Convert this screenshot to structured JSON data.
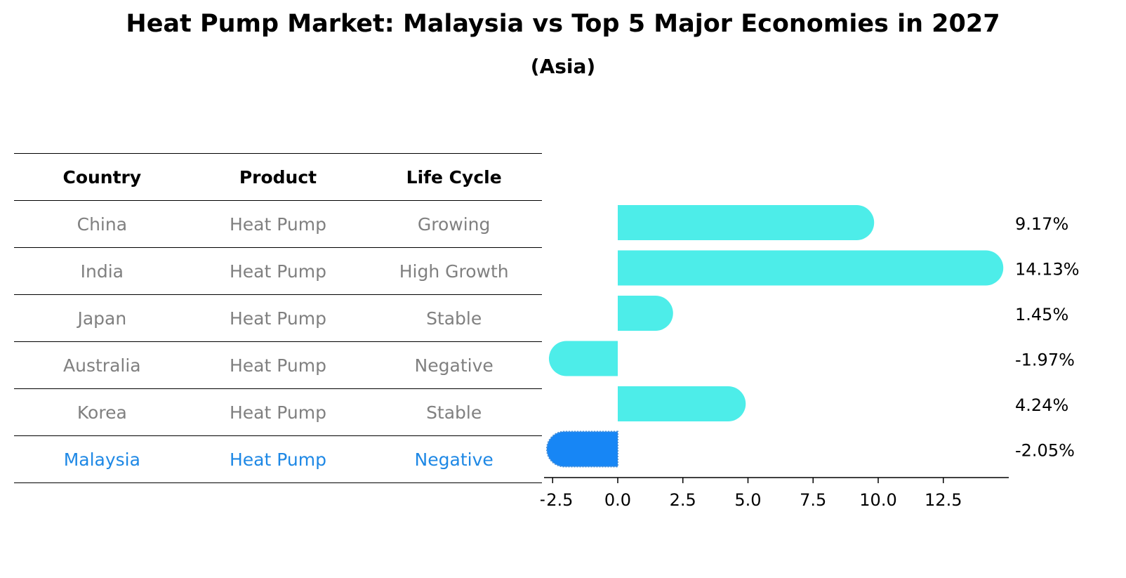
{
  "title": "Heat Pump Market: Malaysia vs Top 5 Major Economies in 2027",
  "subtitle": "(Asia)",
  "table": {
    "headers": [
      "Country",
      "Product",
      "Life Cycle"
    ],
    "rows": [
      [
        "China",
        "Heat Pump",
        "Growing"
      ],
      [
        "India",
        "Heat Pump",
        "High Growth"
      ],
      [
        "Japan",
        "Heat Pump",
        "Stable"
      ],
      [
        "Australia",
        "Heat Pump",
        "Negative"
      ],
      [
        "Korea",
        "Heat Pump",
        "Stable"
      ],
      [
        "Malaysia",
        "Heat Pump",
        "Negative"
      ]
    ],
    "highlight_row": 5
  },
  "chart_data": {
    "type": "bar",
    "orientation": "horizontal",
    "categories": [
      "China",
      "India",
      "Japan",
      "Australia",
      "Korea",
      "Malaysia"
    ],
    "values": [
      9.17,
      14.13,
      1.45,
      -1.97,
      4.24,
      -2.05
    ],
    "value_labels": [
      "9.17%",
      "14.13%",
      "1.45%",
      "-1.97%",
      "4.24%",
      "-2.05%"
    ],
    "xlim": [
      -2.5,
      14.8
    ],
    "xticks": [
      -2.5,
      0.0,
      2.5,
      5.0,
      7.5,
      10.0,
      12.5
    ],
    "xtick_labels": [
      "−2.5",
      "0.0",
      "2.5",
      "5.0",
      "7.5",
      "10.0",
      "12.5"
    ],
    "colors": {
      "default": "#4dede9",
      "highlight": "#1786f5"
    },
    "highlight_index": 5,
    "grid": false
  }
}
